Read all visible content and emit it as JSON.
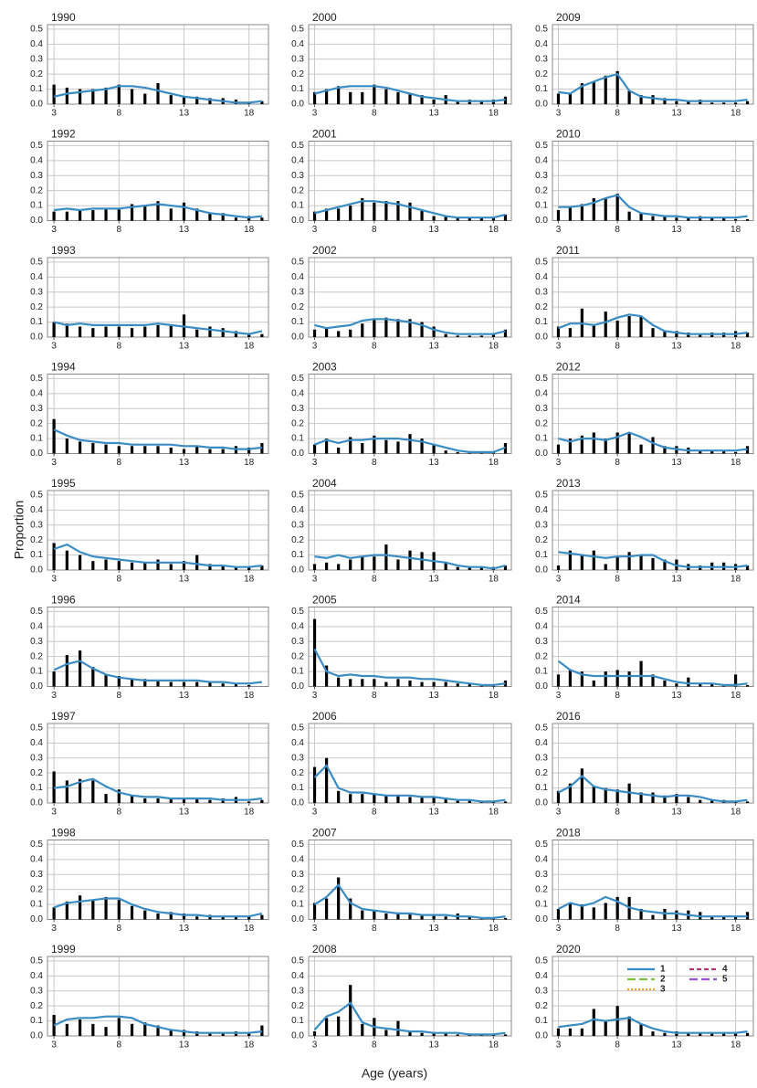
{
  "chart_data": {
    "type": "bar-line-panels",
    "y_label": "Proportion",
    "x_label": "Age (years)",
    "x": [
      3,
      4,
      5,
      6,
      7,
      8,
      9,
      10,
      11,
      12,
      13,
      14,
      15,
      16,
      17,
      18,
      19
    ],
    "xlim": [
      2.5,
      19.5
    ],
    "xticks": [
      3,
      8,
      13,
      18
    ],
    "ylim": [
      0,
      0.53
    ],
    "yticks": [
      {
        "value": 0,
        "label": "0.0"
      },
      0.1,
      0.2,
      0.3,
      0.4,
      0.5
    ],
    "grid": true,
    "bar_color": "#000000",
    "series": [
      {
        "name": "1",
        "color": "#3a8cc4",
        "dash": "solid"
      },
      {
        "name": "2",
        "color": "#7ac143",
        "dash": "long"
      },
      {
        "name": "3",
        "color": "#f0a030",
        "dash": "dot"
      },
      {
        "name": "4",
        "color": "#c0307a",
        "dash": "dash"
      },
      {
        "name": "5",
        "color": "#9b4fd6",
        "dash": "long"
      }
    ],
    "panels": [
      {
        "title": "1990",
        "values": [
          0.13,
          0.11,
          0.1,
          0.1,
          0.11,
          0.13,
          0.1,
          0.07,
          0.14,
          0.06,
          0.05,
          0.05,
          0.04,
          0.04,
          0.03,
          0.01,
          0.02
        ],
        "fit": [
          0.05,
          0.07,
          0.08,
          0.09,
          0.1,
          0.12,
          0.12,
          0.11,
          0.09,
          0.07,
          0.05,
          0.04,
          0.03,
          0.02,
          0.01,
          0.01,
          0.02
        ]
      },
      {
        "title": "1992",
        "values": [
          0.06,
          0.06,
          0.07,
          0.07,
          0.08,
          0.08,
          0.11,
          0.1,
          0.13,
          0.08,
          0.12,
          0.08,
          0.05,
          0.05,
          0.02,
          0.03,
          0.02
        ],
        "fit": [
          0.07,
          0.08,
          0.07,
          0.08,
          0.08,
          0.08,
          0.09,
          0.1,
          0.11,
          0.1,
          0.09,
          0.07,
          0.05,
          0.04,
          0.03,
          0.02,
          0.03
        ]
      },
      {
        "title": "1993",
        "values": [
          0.1,
          0.09,
          0.07,
          0.06,
          0.07,
          0.07,
          0.06,
          0.07,
          0.08,
          0.08,
          0.15,
          0.05,
          0.07,
          0.06,
          0.04,
          0.02,
          0.02
        ],
        "fit": [
          0.1,
          0.08,
          0.09,
          0.08,
          0.08,
          0.08,
          0.08,
          0.08,
          0.09,
          0.08,
          0.07,
          0.06,
          0.05,
          0.04,
          0.03,
          0.02,
          0.04
        ]
      },
      {
        "title": "1994",
        "values": [
          0.23,
          0.1,
          0.08,
          0.07,
          0.06,
          0.05,
          0.05,
          0.05,
          0.05,
          0.04,
          0.03,
          0.05,
          0.03,
          0.03,
          0.05,
          0.04,
          0.07
        ],
        "fit": [
          0.16,
          0.12,
          0.09,
          0.08,
          0.07,
          0.07,
          0.06,
          0.06,
          0.06,
          0.06,
          0.05,
          0.05,
          0.04,
          0.04,
          0.03,
          0.03,
          0.04
        ]
      },
      {
        "title": "1995",
        "values": [
          0.18,
          0.13,
          0.1,
          0.06,
          0.07,
          0.06,
          0.05,
          0.05,
          0.07,
          0.04,
          0.06,
          0.1,
          0.04,
          0.03,
          0.02,
          0.02,
          0.03
        ],
        "fit": [
          0.14,
          0.17,
          0.12,
          0.09,
          0.08,
          0.07,
          0.06,
          0.05,
          0.05,
          0.05,
          0.05,
          0.04,
          0.03,
          0.03,
          0.02,
          0.02,
          0.03
        ]
      },
      {
        "title": "1996",
        "values": [
          0.1,
          0.21,
          0.24,
          0.13,
          0.08,
          0.07,
          0.05,
          0.05,
          0.04,
          0.03,
          0.03,
          0.03,
          0.03,
          0.02,
          0.02,
          0.01,
          0.0
        ],
        "fit": [
          0.11,
          0.15,
          0.17,
          0.12,
          0.08,
          0.06,
          0.05,
          0.04,
          0.04,
          0.04,
          0.04,
          0.04,
          0.03,
          0.03,
          0.02,
          0.02,
          0.03
        ]
      },
      {
        "title": "1997",
        "values": [
          0.21,
          0.15,
          0.16,
          0.15,
          0.06,
          0.09,
          0.05,
          0.03,
          0.03,
          0.03,
          0.03,
          0.03,
          0.02,
          0.03,
          0.04,
          0.01,
          0.02
        ],
        "fit": [
          0.1,
          0.11,
          0.14,
          0.16,
          0.11,
          0.07,
          0.05,
          0.04,
          0.04,
          0.03,
          0.03,
          0.03,
          0.03,
          0.02,
          0.02,
          0.02,
          0.03
        ]
      },
      {
        "title": "1998",
        "values": [
          0.08,
          0.12,
          0.16,
          0.13,
          0.15,
          0.13,
          0.09,
          0.06,
          0.04,
          0.05,
          0.04,
          0.02,
          0.03,
          0.02,
          0.02,
          0.02,
          0.03
        ],
        "fit": [
          0.08,
          0.11,
          0.12,
          0.13,
          0.14,
          0.14,
          0.1,
          0.07,
          0.05,
          0.04,
          0.03,
          0.03,
          0.02,
          0.02,
          0.02,
          0.02,
          0.04
        ]
      },
      {
        "title": "1999",
        "values": [
          0.14,
          0.08,
          0.11,
          0.08,
          0.06,
          0.12,
          0.08,
          0.09,
          0.07,
          0.04,
          0.04,
          0.03,
          0.02,
          0.02,
          0.03,
          0.02,
          0.07
        ],
        "fit": [
          0.07,
          0.11,
          0.12,
          0.12,
          0.13,
          0.13,
          0.12,
          0.08,
          0.06,
          0.04,
          0.03,
          0.02,
          0.02,
          0.02,
          0.02,
          0.02,
          0.03
        ]
      },
      {
        "title": "2000",
        "values": [
          0.08,
          0.1,
          0.12,
          0.08,
          0.08,
          0.13,
          0.1,
          0.08,
          0.07,
          0.06,
          0.03,
          0.06,
          0.02,
          0.03,
          0.02,
          0.03,
          0.05
        ],
        "fit": [
          0.07,
          0.09,
          0.11,
          0.12,
          0.12,
          0.12,
          0.11,
          0.09,
          0.07,
          0.05,
          0.04,
          0.03,
          0.02,
          0.02,
          0.02,
          0.02,
          0.03
        ]
      },
      {
        "title": "2001",
        "values": [
          0.06,
          0.08,
          0.08,
          0.1,
          0.15,
          0.12,
          0.13,
          0.13,
          0.12,
          0.07,
          0.03,
          0.03,
          0.02,
          0.02,
          0.02,
          0.02,
          0.04
        ],
        "fit": [
          0.05,
          0.07,
          0.09,
          0.11,
          0.13,
          0.13,
          0.12,
          0.11,
          0.09,
          0.07,
          0.05,
          0.03,
          0.02,
          0.02,
          0.02,
          0.02,
          0.04
        ]
      },
      {
        "title": "2002",
        "values": [
          0.05,
          0.06,
          0.04,
          0.05,
          0.09,
          0.12,
          0.13,
          0.12,
          0.12,
          0.1,
          0.07,
          0.02,
          0.01,
          0.01,
          0.01,
          0.02,
          0.05
        ],
        "fit": [
          0.08,
          0.06,
          0.07,
          0.08,
          0.11,
          0.12,
          0.12,
          0.11,
          0.1,
          0.08,
          0.05,
          0.03,
          0.02,
          0.02,
          0.02,
          0.02,
          0.04
        ]
      },
      {
        "title": "2003",
        "values": [
          0.06,
          0.1,
          0.04,
          0.11,
          0.07,
          0.12,
          0.09,
          0.08,
          0.13,
          0.1,
          0.06,
          0.02,
          0.01,
          0.01,
          0.01,
          0.01,
          0.07
        ],
        "fit": [
          0.06,
          0.09,
          0.07,
          0.09,
          0.09,
          0.1,
          0.1,
          0.1,
          0.09,
          0.08,
          0.06,
          0.04,
          0.02,
          0.01,
          0.01,
          0.01,
          0.04
        ]
      },
      {
        "title": "2004",
        "values": [
          0.04,
          0.05,
          0.04,
          0.07,
          0.09,
          0.09,
          0.17,
          0.07,
          0.13,
          0.12,
          0.12,
          0.05,
          0.02,
          0.02,
          0.02,
          0.02,
          0.03
        ],
        "fit": [
          0.09,
          0.08,
          0.1,
          0.08,
          0.09,
          0.1,
          0.1,
          0.09,
          0.08,
          0.07,
          0.06,
          0.05,
          0.03,
          0.02,
          0.02,
          0.01,
          0.03
        ]
      },
      {
        "title": "2005",
        "values": [
          0.45,
          0.14,
          0.06,
          0.05,
          0.05,
          0.05,
          0.03,
          0.05,
          0.04,
          0.03,
          0.03,
          0.03,
          0.02,
          0.02,
          0.01,
          0.01,
          0.04
        ],
        "fit": [
          0.25,
          0.1,
          0.07,
          0.08,
          0.07,
          0.07,
          0.06,
          0.06,
          0.06,
          0.05,
          0.05,
          0.04,
          0.03,
          0.02,
          0.01,
          0.01,
          0.02
        ]
      },
      {
        "title": "2006",
        "values": [
          0.24,
          0.3,
          0.08,
          0.06,
          0.06,
          0.06,
          0.05,
          0.05,
          0.04,
          0.04,
          0.04,
          0.03,
          0.02,
          0.02,
          0.01,
          0.01,
          0.01
        ],
        "fit": [
          0.17,
          0.25,
          0.1,
          0.07,
          0.07,
          0.06,
          0.05,
          0.05,
          0.05,
          0.04,
          0.04,
          0.03,
          0.02,
          0.02,
          0.01,
          0.01,
          0.02
        ]
      },
      {
        "title": "2007",
        "values": [
          0.11,
          0.14,
          0.28,
          0.14,
          0.06,
          0.06,
          0.04,
          0.04,
          0.04,
          0.03,
          0.03,
          0.02,
          0.04,
          0.02,
          0.01,
          0.01,
          0.01
        ],
        "fit": [
          0.1,
          0.15,
          0.23,
          0.11,
          0.07,
          0.06,
          0.05,
          0.04,
          0.04,
          0.03,
          0.03,
          0.03,
          0.02,
          0.02,
          0.01,
          0.01,
          0.02
        ]
      },
      {
        "title": "2008",
        "values": [
          0.03,
          0.12,
          0.13,
          0.34,
          0.08,
          0.12,
          0.04,
          0.1,
          0.03,
          0.02,
          0.02,
          0.02,
          0.01,
          0.01,
          0.01,
          0.01,
          0.01
        ],
        "fit": [
          0.04,
          0.13,
          0.16,
          0.22,
          0.09,
          0.06,
          0.05,
          0.04,
          0.03,
          0.03,
          0.02,
          0.02,
          0.02,
          0.01,
          0.01,
          0.01,
          0.02
        ]
      },
      {
        "title": "2009",
        "values": [
          0.07,
          0.07,
          0.14,
          0.15,
          0.19,
          0.22,
          0.09,
          0.06,
          0.06,
          0.04,
          0.02,
          0.02,
          0.03,
          0.01,
          0.01,
          0.01,
          0.02
        ],
        "fit": [
          0.08,
          0.07,
          0.12,
          0.15,
          0.18,
          0.2,
          0.09,
          0.05,
          0.04,
          0.03,
          0.03,
          0.02,
          0.02,
          0.02,
          0.02,
          0.02,
          0.03
        ]
      },
      {
        "title": "2010",
        "values": [
          0.07,
          0.09,
          0.11,
          0.15,
          0.15,
          0.18,
          0.06,
          0.05,
          0.03,
          0.03,
          0.02,
          0.02,
          0.03,
          0.02,
          0.02,
          0.01,
          0.01
        ],
        "fit": [
          0.09,
          0.09,
          0.1,
          0.12,
          0.15,
          0.17,
          0.09,
          0.05,
          0.04,
          0.03,
          0.03,
          0.02,
          0.02,
          0.02,
          0.02,
          0.02,
          0.03
        ]
      },
      {
        "title": "2011",
        "values": [
          0.07,
          0.06,
          0.19,
          0.08,
          0.17,
          0.11,
          0.14,
          0.14,
          0.06,
          0.04,
          0.04,
          0.03,
          0.02,
          0.03,
          0.03,
          0.04,
          0.03
        ],
        "fit": [
          0.06,
          0.09,
          0.09,
          0.08,
          0.1,
          0.13,
          0.15,
          0.14,
          0.08,
          0.04,
          0.03,
          0.02,
          0.02,
          0.02,
          0.02,
          0.02,
          0.03
        ]
      },
      {
        "title": "2012",
        "values": [
          0.06,
          0.1,
          0.12,
          0.14,
          0.1,
          0.14,
          0.14,
          0.06,
          0.11,
          0.05,
          0.05,
          0.04,
          0.02,
          0.02,
          0.02,
          0.01,
          0.05
        ],
        "fit": [
          0.1,
          0.08,
          0.1,
          0.1,
          0.09,
          0.11,
          0.14,
          0.11,
          0.07,
          0.04,
          0.03,
          0.02,
          0.02,
          0.02,
          0.02,
          0.02,
          0.03
        ]
      },
      {
        "title": "2013",
        "values": [
          0.03,
          0.13,
          0.1,
          0.13,
          0.04,
          0.09,
          0.12,
          0.1,
          0.08,
          0.07,
          0.07,
          0.04,
          0.03,
          0.05,
          0.05,
          0.04,
          0.03
        ],
        "fit": [
          0.12,
          0.11,
          0.1,
          0.09,
          0.08,
          0.09,
          0.09,
          0.1,
          0.1,
          0.06,
          0.03,
          0.02,
          0.02,
          0.02,
          0.02,
          0.02,
          0.03
        ]
      },
      {
        "title": "2014",
        "values": [
          0.08,
          0.11,
          0.1,
          0.04,
          0.1,
          0.11,
          0.1,
          0.17,
          0.08,
          0.04,
          0.02,
          0.06,
          0.02,
          0.02,
          0.01,
          0.08,
          0.01
        ],
        "fit": [
          0.17,
          0.11,
          0.08,
          0.07,
          0.07,
          0.07,
          0.07,
          0.07,
          0.07,
          0.05,
          0.03,
          0.02,
          0.02,
          0.02,
          0.01,
          0.01,
          0.02
        ]
      },
      {
        "title": "2016",
        "values": [
          0.08,
          0.13,
          0.23,
          0.11,
          0.1,
          0.09,
          0.13,
          0.07,
          0.07,
          0.05,
          0.06,
          0.04,
          0.02,
          0.02,
          0.02,
          0.01,
          0.01
        ],
        "fit": [
          0.07,
          0.11,
          0.18,
          0.11,
          0.09,
          0.08,
          0.07,
          0.06,
          0.05,
          0.04,
          0.05,
          0.05,
          0.04,
          0.02,
          0.01,
          0.01,
          0.02
        ]
      },
      {
        "title": "2018",
        "values": [
          0.07,
          0.11,
          0.1,
          0.08,
          0.11,
          0.15,
          0.15,
          0.07,
          0.03,
          0.07,
          0.06,
          0.06,
          0.05,
          0.02,
          0.02,
          0.02,
          0.05
        ],
        "fit": [
          0.07,
          0.11,
          0.09,
          0.11,
          0.15,
          0.12,
          0.08,
          0.06,
          0.05,
          0.04,
          0.04,
          0.03,
          0.02,
          0.02,
          0.02,
          0.02,
          0.02
        ]
      },
      {
        "title": "2020",
        "values": [
          0.05,
          0.05,
          0.05,
          0.18,
          0.1,
          0.2,
          0.13,
          0.08,
          0.03,
          0.02,
          0.03,
          0.02,
          0.02,
          0.02,
          0.02,
          0.02,
          0.02
        ],
        "fit": [
          0.06,
          0.07,
          0.08,
          0.11,
          0.1,
          0.11,
          0.12,
          0.08,
          0.05,
          0.03,
          0.02,
          0.02,
          0.02,
          0.02,
          0.02,
          0.02,
          0.03
        ]
      }
    ]
  }
}
